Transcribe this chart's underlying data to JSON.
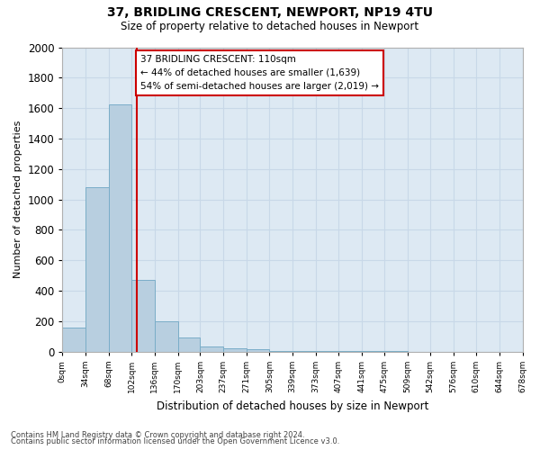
{
  "title1": "37, BRIDLING CRESCENT, NEWPORT, NP19 4TU",
  "title2": "Size of property relative to detached houses in Newport",
  "xlabel": "Distribution of detached houses by size in Newport",
  "ylabel": "Number of detached properties",
  "footer1": "Contains HM Land Registry data © Crown copyright and database right 2024.",
  "footer2": "Contains public sector information licensed under the Open Government Licence v3.0.",
  "annotation_line1": "37 BRIDLING CRESCENT: 110sqm",
  "annotation_line2": "← 44% of detached houses are smaller (1,639)",
  "annotation_line3": "54% of semi-detached houses are larger (2,019) →",
  "property_size": 110,
  "bar_color": "#b8cfe0",
  "bar_edge_color": "#7aadc8",
  "vline_color": "#cc0000",
  "annotation_box_edgecolor": "#cc0000",
  "grid_color": "#c8d8e8",
  "background_color": "#dde9f3",
  "bin_edges": [
    0,
    34,
    68,
    102,
    136,
    170,
    203,
    237,
    271,
    305,
    339,
    373,
    407,
    441,
    475,
    509,
    542,
    576,
    610,
    644,
    678
  ],
  "bar_values": [
    160,
    1080,
    1625,
    470,
    200,
    95,
    35,
    25,
    15,
    5,
    5,
    3,
    3,
    2,
    2,
    1,
    1,
    1,
    0,
    0
  ],
  "ylim": [
    0,
    2000
  ],
  "yticks": [
    0,
    200,
    400,
    600,
    800,
    1000,
    1200,
    1400,
    1600,
    1800,
    2000
  ],
  "xtick_labels": [
    "0sqm",
    "34sqm",
    "68sqm",
    "102sqm",
    "136sqm",
    "170sqm",
    "203sqm",
    "237sqm",
    "271sqm",
    "305sqm",
    "339sqm",
    "373sqm",
    "407sqm",
    "441sqm",
    "475sqm",
    "509sqm",
    "542sqm",
    "576sqm",
    "610sqm",
    "644sqm",
    "678sqm"
  ]
}
